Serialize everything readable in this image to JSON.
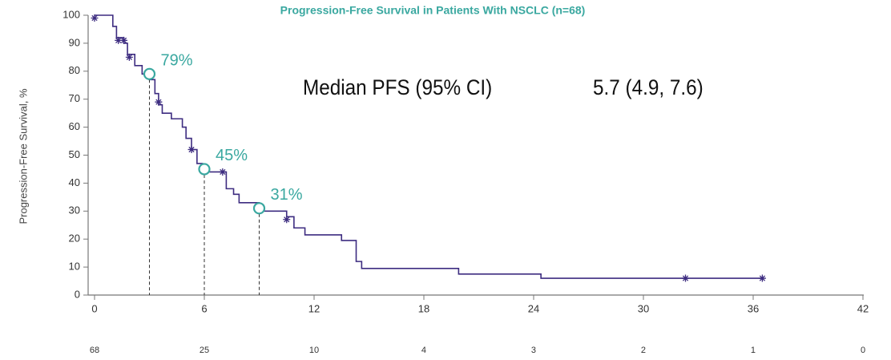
{
  "chart_data": {
    "type": "step",
    "title": "Progression-Free Survival in Patients With NSCLC (n=68)",
    "y_label": "Progression-Free Survival, %",
    "annotation_label": "Median PFS (95% CI)",
    "annotation_value": "5.7 (4.9, 7.6)",
    "xlim": [
      -0.35,
      42
    ],
    "ylim": [
      0,
      100
    ],
    "xticks": [
      0,
      6,
      12,
      18,
      24,
      30,
      36,
      42
    ],
    "yticks": [
      0,
      10,
      20,
      30,
      40,
      50,
      60,
      70,
      80,
      90,
      100
    ],
    "grid": false,
    "color": "#3d2c80",
    "accent_color": "#3aa8a0",
    "x": [
      0,
      1.0,
      1.2,
      1.6,
      1.8,
      2.2,
      2.6,
      3.0,
      3.3,
      3.5,
      3.7,
      4.2,
      4.8,
      5.0,
      5.3,
      5.6,
      5.9,
      6.0,
      7.2,
      7.6,
      7.9,
      9.0,
      10.5,
      10.9,
      11.5,
      13.5,
      14.3,
      14.6,
      19.9,
      24.4,
      36.5
    ],
    "values": [
      100,
      96,
      92,
      90,
      86,
      82,
      79,
      77,
      72,
      68,
      65,
      63,
      60,
      56,
      52,
      47,
      45,
      44,
      38,
      36,
      33,
      30,
      28,
      24,
      21.5,
      19.5,
      12,
      9.5,
      7.5,
      6,
      6
    ],
    "censored": {
      "x": [
        0,
        1.3,
        1.6,
        1.9,
        3.5,
        5.3,
        7.0,
        10.5,
        32.3,
        36.5
      ],
      "y": [
        99,
        91,
        91,
        85,
        69,
        52,
        44,
        27,
        6,
        6
      ]
    },
    "survival_points": {
      "x": [
        3,
        6,
        9
      ],
      "values": [
        79,
        45,
        31
      ],
      "value_labels": [
        "79%",
        "45%",
        "31%"
      ]
    },
    "at_risk": [
      68,
      25,
      10,
      4,
      3,
      2,
      1,
      0
    ]
  }
}
